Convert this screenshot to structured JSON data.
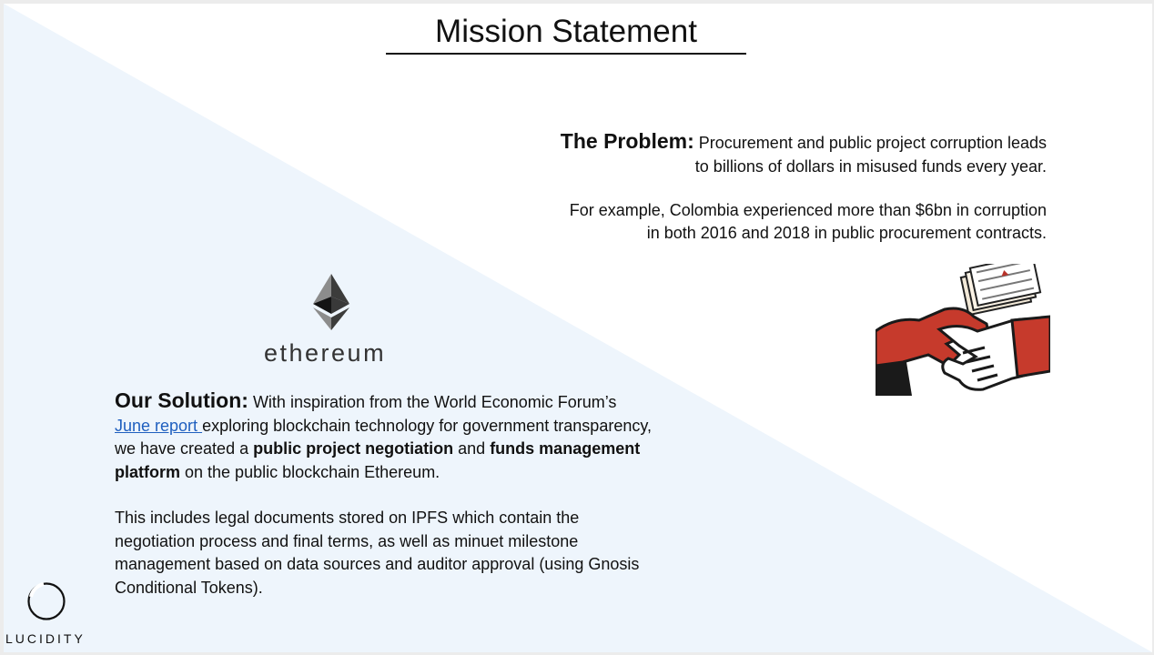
{
  "slide": {
    "title": "Mission Statement",
    "background_color": "#eef5fc"
  },
  "problem": {
    "heading": "The Problem:",
    "text_1": "Procurement and public project corruption leads",
    "text_2": "to billions of dollars in misused funds every year.",
    "example_1": "For example, Colombia experienced more than $6bn in corruption",
    "example_2": "in both 2016 and 2018 in public procurement contracts.",
    "image_icon": "handshake-money-icon"
  },
  "ethereum": {
    "icon": "ethereum-diamond-icon",
    "wordmark": "ethereum"
  },
  "solution": {
    "heading": "Our Solution:",
    "text_a": "With inspiration from the World Economic Forum’s",
    "link_text": "June report ",
    "text_b": "exploring blockchain technology for government transparency, we have created a",
    "bold_1": "public project negotiation",
    "text_c": "and",
    "bold_2": "funds management platform",
    "text_d": "on the public blockchain Ethereum.",
    "paragraph_2": "This includes legal documents stored on IPFS which contain the negotiation process and final terms, as well as minuet milestone management based on data sources and auditor approval (using Gnosis Conditional Tokens).",
    "link_color": "#1f5fbf"
  },
  "brand": {
    "logo_icon": "lucidity-ring-icon",
    "wordmark": "LUCIDITY"
  }
}
